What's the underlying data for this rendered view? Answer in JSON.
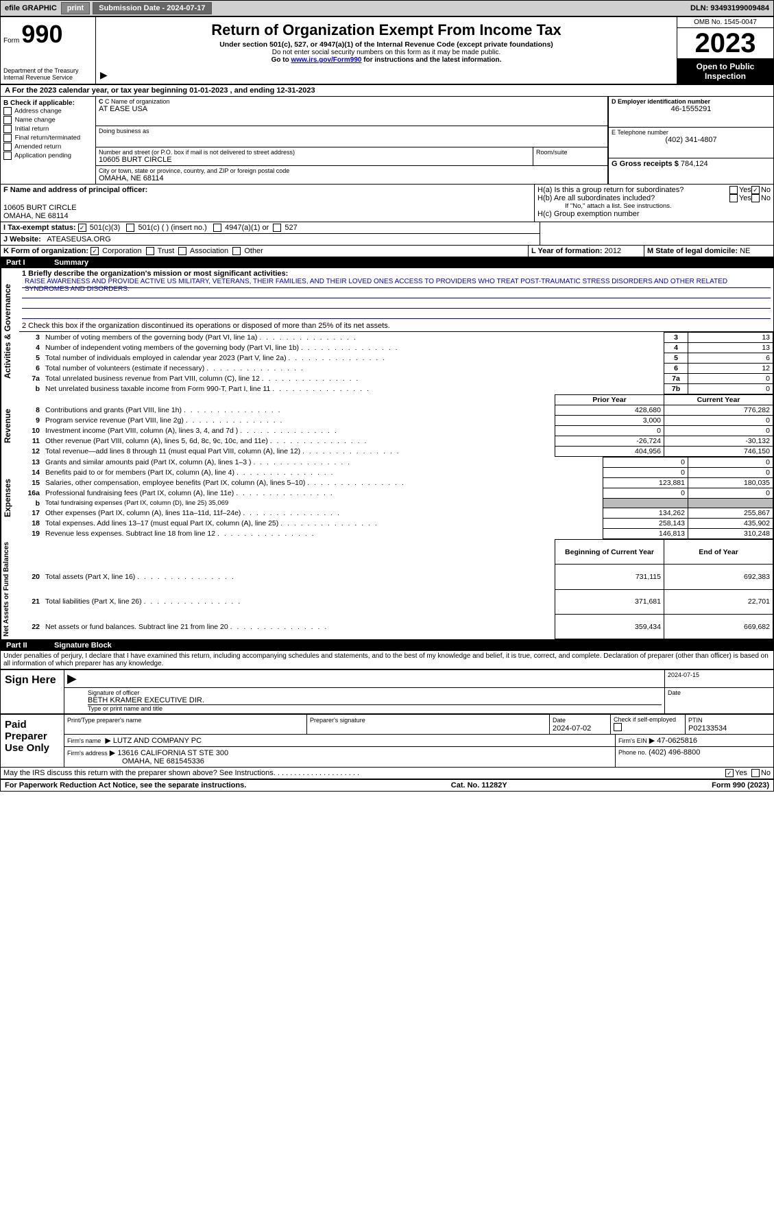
{
  "topbar": {
    "efile": "efile GRAPHIC",
    "print": "print",
    "sub_label": "Submission Date - 2024-07-17",
    "dln": "DLN: 93493199009484"
  },
  "header": {
    "form_word": "Form",
    "form_num": "990",
    "dept": "Department of the Treasury\nInternal Revenue Service",
    "title": "Return of Organization Exempt From Income Tax",
    "sub1": "Under section 501(c), 527, or 4947(a)(1) of the Internal Revenue Code (except private foundations)",
    "sub2": "Do not enter social security numbers on this form as it may be made public.",
    "sub3_pre": "Go to ",
    "sub3_link": "www.irs.gov/Form990",
    "sub3_post": " for instructions and the latest information.",
    "omb": "OMB No. 1545-0047",
    "year": "2023",
    "inspect": "Open to Public Inspection"
  },
  "cal_year": {
    "pre": "For the 2023 calendar year, or tax year beginning ",
    "begin": "01-01-2023",
    "mid": " , and ending ",
    "end": "12-31-2023"
  },
  "b_checks": {
    "label": "B Check if applicable:",
    "items": [
      "Address change",
      "Name change",
      "Initial return",
      "Final return/terminated",
      "Amended return",
      "Application pending"
    ]
  },
  "c": {
    "label": "C Name of organization",
    "name": "AT EASE USA",
    "dba_label": "Doing business as",
    "addr_label": "Number and street (or P.O. box if mail is not delivered to street address)",
    "addr": "10605 BURT CIRCLE",
    "room_label": "Room/suite",
    "city_label": "City or town, state or province, country, and ZIP or foreign postal code",
    "city": "OMAHA, NE  68114"
  },
  "d": {
    "label": "D Employer identification number",
    "value": "46-1555291"
  },
  "e": {
    "label": "E Telephone number",
    "value": "(402) 341-4807"
  },
  "g": {
    "label": "G Gross receipts $",
    "value": "784,124"
  },
  "f": {
    "label": "F  Name and address of principal officer:",
    "addr1": "10605 BURT CIRCLE",
    "addr2": "OMAHA, NE  68114"
  },
  "h": {
    "a_label": "H(a)  Is this a group return for subordinates?",
    "b_label": "H(b)  Are all subordinates included?",
    "b_note": "If \"No,\" attach a list. See instructions.",
    "c_label": "H(c)  Group exemption number",
    "yes": "Yes",
    "no": "No"
  },
  "i": {
    "label": "I      Tax-exempt status:",
    "opts": [
      "501(c)(3)",
      "501(c) (  ) (insert no.)",
      "4947(a)(1) or",
      "527"
    ]
  },
  "j": {
    "label": "J      Website:",
    "value": "ATEASEUSA.ORG"
  },
  "k": {
    "label": "K Form of organization:",
    "opts": [
      "Corporation",
      "Trust",
      "Association",
      "Other"
    ]
  },
  "l": {
    "label": "L Year of formation:",
    "value": "2012"
  },
  "m": {
    "label": "M State of legal domicile:",
    "value": "NE"
  },
  "part1": {
    "name": "Part I",
    "title": "Summary"
  },
  "sidebars": {
    "gov": "Activities & Governance",
    "rev": "Revenue",
    "exp": "Expenses",
    "net": "Net Assets or\nFund Balances"
  },
  "summary": {
    "l1_label": "1   Briefly describe the organization's mission or most significant activities:",
    "l1_text": "RAISE AWARENESS AND PROVIDE ACTIVE US MILITARY, VETERANS, THEIR FAMILIES, AND THEIR LOVED ONES ACCESS TO PROVIDERS WHO TREAT POST-TRAUMATIC STRESS DISORDERS AND OTHER RELATED SYNDROMES AND DISORDERS.",
    "l2": "2   Check this box        if the organization discontinued its operations or disposed of more than 25% of its net assets.",
    "prior_year": "Prior Year",
    "current_year": "Current Year",
    "begin_year": "Beginning of Current Year",
    "end_year": "End of Year",
    "rows_gov": [
      {
        "n": "3",
        "t": "Number of voting members of the governing body (Part VI, line 1a)",
        "l": "3",
        "v": "13"
      },
      {
        "n": "4",
        "t": "Number of independent voting members of the governing body (Part VI, line 1b)",
        "l": "4",
        "v": "13"
      },
      {
        "n": "5",
        "t": "Total number of individuals employed in calendar year 2023 (Part V, line 2a)",
        "l": "5",
        "v": "6"
      },
      {
        "n": "6",
        "t": "Total number of volunteers (estimate if necessary)",
        "l": "6",
        "v": "12"
      },
      {
        "n": "7a",
        "t": "Total unrelated business revenue from Part VIII, column (C), line 12",
        "l": "7a",
        "v": "0"
      },
      {
        "n": "b",
        "t": "Net unrelated business taxable income from Form 990-T, Part I, line 11",
        "l": "7b",
        "v": "0"
      }
    ],
    "rows_rev": [
      {
        "n": "8",
        "t": "Contributions and grants (Part VIII, line 1h)",
        "p": "428,680",
        "c": "776,282"
      },
      {
        "n": "9",
        "t": "Program service revenue (Part VIII, line 2g)",
        "p": "3,000",
        "c": "0"
      },
      {
        "n": "10",
        "t": "Investment income (Part VIII, column (A), lines 3, 4, and 7d )",
        "p": "0",
        "c": "0"
      },
      {
        "n": "11",
        "t": "Other revenue (Part VIII, column (A), lines 5, 6d, 8c, 9c, 10c, and 11e)",
        "p": "-26,724",
        "c": "-30,132"
      },
      {
        "n": "12",
        "t": "Total revenue—add lines 8 through 11 (must equal Part VIII, column (A), line 12)",
        "p": "404,956",
        "c": "746,150"
      }
    ],
    "rows_exp": [
      {
        "n": "13",
        "t": "Grants and similar amounts paid (Part IX, column (A), lines 1–3 )",
        "p": "0",
        "c": "0"
      },
      {
        "n": "14",
        "t": "Benefits paid to or for members (Part IX, column (A), line 4)",
        "p": "0",
        "c": "0"
      },
      {
        "n": "15",
        "t": "Salaries, other compensation, employee benefits (Part IX, column (A), lines 5–10)",
        "p": "123,881",
        "c": "180,035"
      },
      {
        "n": "16a",
        "t": "Professional fundraising fees (Part IX, column (A), line 11e)",
        "p": "0",
        "c": "0"
      },
      {
        "n": "b",
        "t": "Total fundraising expenses (Part IX, column (D), line 25) 35,069",
        "grey": true
      },
      {
        "n": "17",
        "t": "Other expenses (Part IX, column (A), lines 11a–11d, 11f–24e)",
        "p": "134,262",
        "c": "255,867"
      },
      {
        "n": "18",
        "t": "Total expenses. Add lines 13–17 (must equal Part IX, column (A), line 25)",
        "p": "258,143",
        "c": "435,902"
      },
      {
        "n": "19",
        "t": "Revenue less expenses. Subtract line 18 from line 12",
        "p": "146,813",
        "c": "310,248"
      }
    ],
    "rows_net": [
      {
        "n": "20",
        "t": "Total assets (Part X, line 16)",
        "p": "731,115",
        "c": "692,383"
      },
      {
        "n": "21",
        "t": "Total liabilities (Part X, line 26)",
        "p": "371,681",
        "c": "22,701"
      },
      {
        "n": "22",
        "t": "Net assets or fund balances. Subtract line 21 from line 20",
        "p": "359,434",
        "c": "669,682"
      }
    ]
  },
  "part2": {
    "name": "Part II",
    "title": "Signature Block"
  },
  "perjury": "Under penalties of perjury, I declare that I have examined this return, including accompanying schedules and statements, and to the best of my knowledge and belief, it is true, correct, and complete. Declaration of preparer (other than officer) is based on all information of which preparer has any knowledge.",
  "sign": {
    "here": "Sign Here",
    "sig_label": "Signature of officer",
    "name": "BETH KRAMER  EXECUTIVE DIR.",
    "name_label": "Type or print name and title",
    "date_label": "Date",
    "date": "2024-07-15"
  },
  "paid": {
    "label": "Paid Preparer Use Only",
    "p1": "Print/Type preparer's name",
    "p2": "Preparer's signature",
    "p3_l": "Date",
    "p3_v": "2024-07-02",
    "p4_l": "Check        if self-employed",
    "ptin_l": "PTIN",
    "ptin_v": "P02133534",
    "firm_l": "Firm's name",
    "firm_v": "LUTZ AND COMPANY PC",
    "ein_l": "Firm's EIN",
    "ein_v": "47-0625816",
    "addr_l": "Firm's address",
    "addr_v1": "13616 CALIFORNIA ST STE 300",
    "addr_v2": "OMAHA, NE  681545336",
    "phone_l": "Phone no.",
    "phone_v": "(402) 496-8800"
  },
  "discuss": "May the IRS discuss this return with the preparer shown above? See Instructions.",
  "footer": {
    "pra": "For Paperwork Reduction Act Notice, see the separate instructions.",
    "cat": "Cat. No. 11282Y",
    "form": "Form 990 (2023)"
  }
}
